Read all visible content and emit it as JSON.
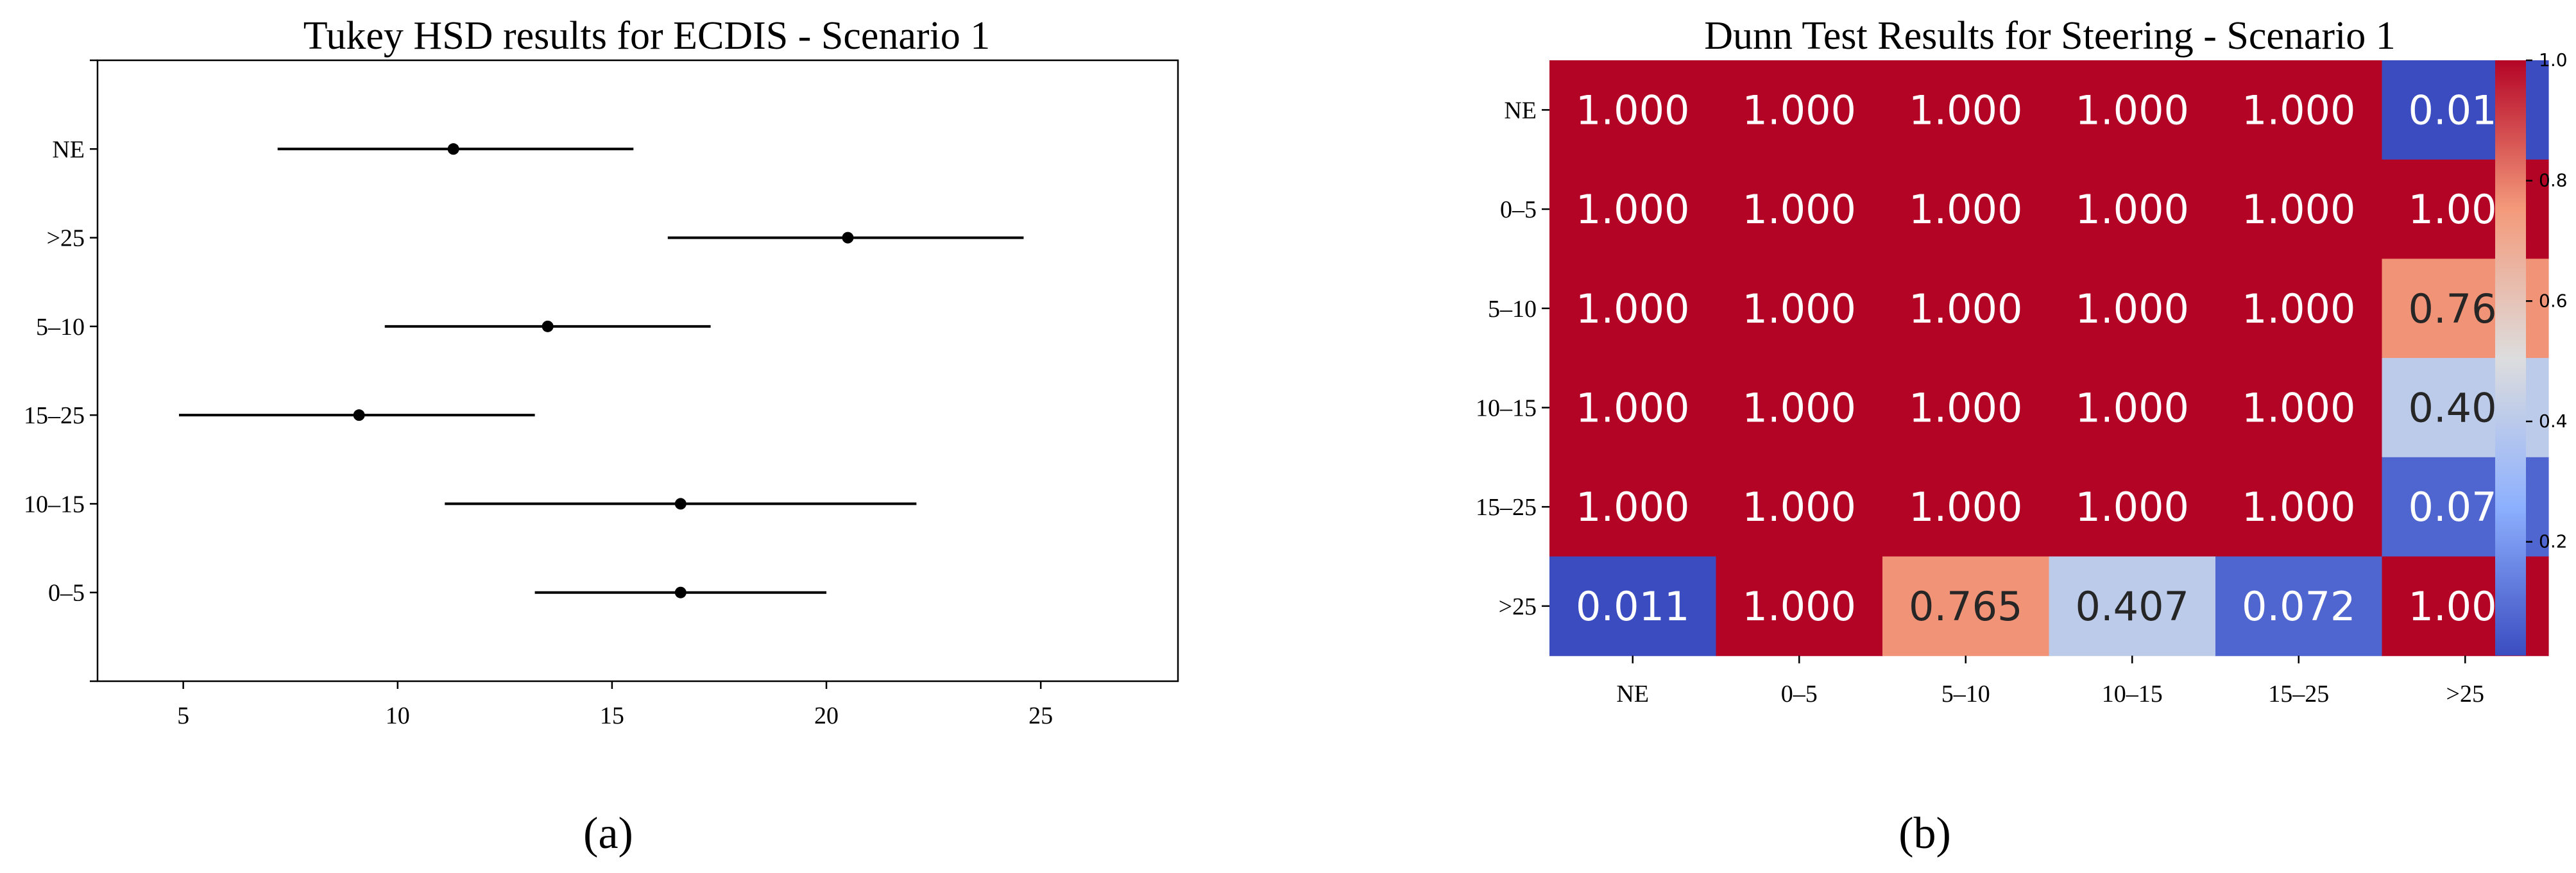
{
  "chart_data": [
    {
      "type": "interval",
      "title": "Tukey HSD results for ECDIS - Scenario 1",
      "panel_label": "(a)",
      "xlabel": "",
      "ylabel": "",
      "categories": [
        "NE",
        ">25",
        "5–10",
        "15–25",
        "10–15",
        "0–5"
      ],
      "means": [
        11.3,
        20.5,
        13.5,
        9.1,
        16.6,
        16.6
      ],
      "lower": [
        7.2,
        16.3,
        9.7,
        4.9,
        11.1,
        13.2
      ],
      "upper": [
        15.5,
        24.6,
        17.3,
        13.2,
        22.1,
        20.0
      ],
      "xlim": [
        3.0,
        28.2
      ],
      "xticks": [
        5,
        10,
        15,
        20,
        25
      ],
      "grid": false
    },
    {
      "type": "heatmap",
      "title": "Dunn Test Results for Steering - Scenario 1",
      "panel_label": "(b)",
      "row_labels": [
        "NE",
        "0–5",
        "5–10",
        "10–15",
        "15–25",
        ">25"
      ],
      "col_labels": [
        "NE",
        "0–5",
        "5–10",
        "10–15",
        "15–25",
        ">25"
      ],
      "values": [
        [
          1.0,
          1.0,
          1.0,
          1.0,
          1.0,
          0.011
        ],
        [
          1.0,
          1.0,
          1.0,
          1.0,
          1.0,
          1.0
        ],
        [
          1.0,
          1.0,
          1.0,
          1.0,
          1.0,
          0.765
        ],
        [
          1.0,
          1.0,
          1.0,
          1.0,
          1.0,
          0.407
        ],
        [
          1.0,
          1.0,
          1.0,
          1.0,
          1.0,
          0.072
        ],
        [
          0.011,
          1.0,
          0.765,
          0.407,
          0.072,
          1.0
        ]
      ],
      "colormap": "coolwarm",
      "vmin": 0.011,
      "vmax": 1.0,
      "colorbar_ticks": [
        0.2,
        0.4,
        0.6,
        0.8,
        1.0
      ],
      "colorbar_tick_labels": [
        "0.2",
        "0.4",
        "0.6",
        "0.8",
        "1.0"
      ]
    }
  ]
}
